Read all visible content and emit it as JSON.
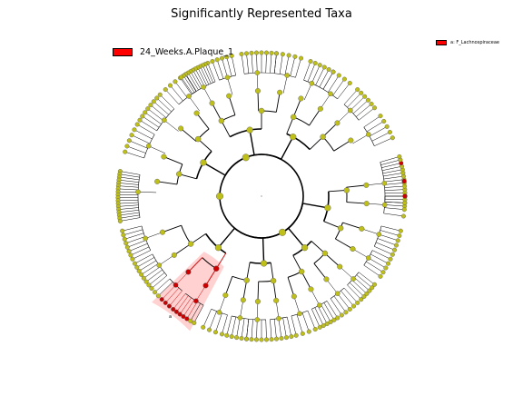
{
  "title": "Significantly Represented Taxa",
  "legend": {
    "class_label": "24_Weeks.A.Plaque_1",
    "class_color": "#ff0000",
    "clade_entry": "a: F_Lachnospiraceae",
    "clade_letter": "a"
  },
  "colors": {
    "node_default": "#bfbf1a",
    "node_highlight": "#cc0000",
    "branch": "#000000",
    "clade_shade": "#ffb3b3"
  },
  "tree": {
    "type": "cladogram",
    "layout": "circular",
    "highlighted_clade": "F_Lachnospiraceae"
  }
}
